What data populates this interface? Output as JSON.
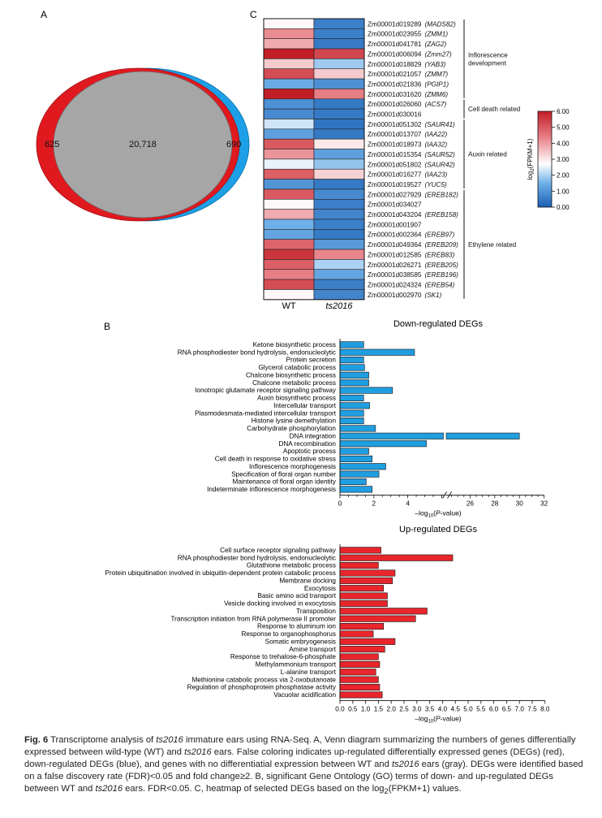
{
  "panel_labels": {
    "a": "A",
    "b": "B",
    "c": "C"
  },
  "colors": {
    "up": "#e0191f",
    "down": "#1c9fe6",
    "shared": "#a6a6a6",
    "bar_up": "#e8262c",
    "bar_down": "#1f9ee0",
    "axis": "#111111"
  },
  "chart_data": [
    {
      "type": "venn",
      "panel": "A",
      "sets": [
        {
          "name": "up-regulated DEGs",
          "count": 625,
          "label": "625"
        },
        {
          "name": "shared",
          "count": 20718,
          "label": "20,718"
        },
        {
          "name": "down-regulated DEGs",
          "count": 690,
          "label": "690"
        }
      ]
    },
    {
      "type": "heatmap",
      "panel": "C",
      "columns": [
        "WT",
        "ts2016"
      ],
      "colorbar": {
        "label": "log2(FPKM+1)",
        "ticks": [
          "0.00",
          "1.00",
          "2.00",
          "3.00",
          "4.00",
          "5.00",
          "6.00"
        ],
        "range": [
          0,
          6
        ]
      },
      "rows": [
        {
          "id": "Zm00001d019289",
          "sym": "(MADS82)",
          "v": [
            2.8,
            0.6
          ]
        },
        {
          "id": "Zm00001d023955",
          "sym": "(ZMM1)",
          "v": [
            4.2,
            0.6
          ]
        },
        {
          "id": "Zm00001d041781",
          "sym": "(ZAG2)",
          "v": [
            3.8,
            0.5
          ]
        },
        {
          "id": "Zm00001d006094",
          "sym": "(Zmm27)",
          "v": [
            6.0,
            5.3
          ]
        },
        {
          "id": "Zm00001d018829",
          "sym": "(YAB3)",
          "v": [
            3.4,
            1.9
          ]
        },
        {
          "id": "Zm00001d021057",
          "sym": "(ZMM7)",
          "v": [
            5.2,
            3.4
          ]
        },
        {
          "id": "Zm00001d021836",
          "sym": "(PGIP1)",
          "v": [
            1.4,
            0.9
          ]
        },
        {
          "id": "Zm00001d031620",
          "sym": "(ZMM6)",
          "v": [
            6.0,
            4.4
          ]
        },
        {
          "id": "Zm00001d026060",
          "sym": "(ACS7)",
          "v": [
            0.9,
            0.5
          ]
        },
        {
          "id": "Zm00001d030016",
          "sym": "",
          "v": [
            0.8,
            0.5
          ]
        },
        {
          "id": "Zm00001d051302",
          "sym": "(SAUR41)",
          "v": [
            2.3,
            0.4
          ]
        },
        {
          "id": "Zm00001d013707",
          "sym": "(IAA22)",
          "v": [
            1.2,
            0.5
          ]
        },
        {
          "id": "Zm00001d018973",
          "sym": "(IAA32)",
          "v": [
            5.0,
            3.0
          ]
        },
        {
          "id": "Zm00001d015354",
          "sym": "(SAUR52)",
          "v": [
            4.1,
            1.2
          ]
        },
        {
          "id": "Zm00001d051802",
          "sym": "(SAUR42)",
          "v": [
            2.5,
            1.8
          ]
        },
        {
          "id": "Zm00001d016277",
          "sym": "(IAA23)",
          "v": [
            4.9,
            3.3
          ]
        },
        {
          "id": "Zm00001d019527",
          "sym": "(YUC5)",
          "v": [
            1.0,
            0.5
          ]
        },
        {
          "id": "Zm00001d027929",
          "sym": "(EREB182)",
          "v": [
            5.0,
            0.8
          ]
        },
        {
          "id": "Zm00001d034027",
          "sym": "",
          "v": [
            2.8,
            0.6
          ]
        },
        {
          "id": "Zm00001d043204",
          "sym": "(EREB158)",
          "v": [
            3.8,
            0.7
          ]
        },
        {
          "id": "Zm00001d001907",
          "sym": "",
          "v": [
            1.5,
            0.6
          ]
        },
        {
          "id": "Zm00001d002364",
          "sym": "(EREB97)",
          "v": [
            1.3,
            0.5
          ]
        },
        {
          "id": "Zm00001d049364",
          "sym": "(EREB209)",
          "v": [
            4.8,
            1.1
          ]
        },
        {
          "id": "Zm00001d012585",
          "sym": "(EREB83)",
          "v": [
            5.6,
            4.3
          ]
        },
        {
          "id": "Zm00001d026271",
          "sym": "(EREB205)",
          "v": [
            4.9,
            2.0
          ]
        },
        {
          "id": "Zm00001d038585",
          "sym": "(EREB196)",
          "v": [
            4.4,
            1.3
          ]
        },
        {
          "id": "Zm00001d024324",
          "sym": "(EREB54)",
          "v": [
            5.2,
            0.6
          ]
        },
        {
          "id": "Zm00001d002970",
          "sym": "(SK1)",
          "v": [
            2.8,
            0.7
          ]
        }
      ],
      "groups": [
        {
          "label": [
            "Inflorescence",
            "development"
          ],
          "from": 0,
          "to": 7
        },
        {
          "label": [
            "Cell death related"
          ],
          "from": 8,
          "to": 9
        },
        {
          "label": [
            "Auxin related"
          ],
          "from": 10,
          "to": 16
        },
        {
          "label": [
            "Ethylene related"
          ],
          "from": 17,
          "to": 27
        }
      ]
    },
    {
      "type": "bar",
      "panel": "B-down",
      "title": "Down-regulated DEGs",
      "xlabel": "–log10(P-value)",
      "xticks_left": [
        "0",
        "2",
        "4"
      ],
      "xticks_right": [
        "26",
        "28",
        "30",
        "32"
      ],
      "broken_axis": {
        "left_range": [
          0,
          6
        ],
        "right_range": [
          25,
          32
        ]
      },
      "categories": [
        "Ketone biosynthetic process",
        "RNA phosphodiester bond hydrolysis, endonucleolytic",
        "Protein secretion",
        "Glycerol catabolic process",
        "Chalcone biosynthetic process",
        "Chalcone metabolic process",
        "Ionotropic glutamate receptor signaling pathway",
        "Auxin biosynthetic process",
        "Intercellular transport",
        "Plasmodesmata-mediated intercellular transport",
        "Histone lysine demethylation",
        "Carbohydrate phosphorylation",
        "DNA integration",
        "DNA recombination",
        "Apoptotic process",
        "Cell death in response to oxidative stress",
        "Inflorescence morphogenesis",
        "Specification of floral organ number",
        "Maintenance of floral organ identity",
        "Indeterminate inflorescence morphogenesis"
      ],
      "values": [
        1.4,
        4.4,
        1.4,
        1.45,
        1.7,
        1.7,
        3.1,
        1.4,
        1.75,
        1.4,
        1.4,
        2.1,
        30.0,
        5.1,
        1.7,
        1.9,
        2.7,
        2.3,
        1.55,
        1.9
      ]
    },
    {
      "type": "bar",
      "panel": "B-up",
      "title": "Up-regulated DEGs",
      "xlabel": "–log10(P-value)",
      "xticks": [
        "0.0",
        "0.5",
        "1.0",
        "1.5",
        "2.0",
        "2.5",
        "3.0",
        "3.5",
        "4.0",
        "4.5",
        "5.0",
        "5.5",
        "6.0",
        "6.5",
        "7.0",
        "7.5",
        "8.0"
      ],
      "xlim": [
        0,
        8
      ],
      "categories": [
        "Cell surface receptor signaling pathway",
        "RNA phosphodiester bond hydrolysis, endonucleolytic",
        "Glutathione metabolic process",
        "Protein ubiquitination involved in ubiquitin-dependent protein catabolic process",
        "Membrane docking",
        "Exocytosis",
        "Basic amino acid transport",
        "Vesicle docking involved in exocytosis",
        "Transposition",
        "Transcription initiation from RNA polymerase II promoter",
        "Response to aluminum ion",
        "Response to organophosphorus",
        "Somatic embryogenesis",
        "Amine transport",
        "Response to trehalose-6-phosphate",
        "Methylammonium transport",
        "L-alanine transport",
        "Methionine catabolic process via 2-oxobutanoate",
        "Regulation of phosphoprotein phosphatase activity",
        "Vacuolar acidification"
      ],
      "values": [
        1.6,
        4.4,
        1.5,
        2.15,
        2.05,
        1.7,
        1.85,
        1.85,
        3.4,
        2.95,
        1.7,
        1.3,
        2.15,
        1.75,
        1.5,
        1.55,
        1.4,
        1.5,
        1.55,
        1.65
      ]
    }
  ],
  "caption": {
    "fig": "Fig. 6",
    "segments": [
      {
        "t": "  Transcriptome analysis of "
      },
      {
        "t": "ts2016",
        "i": true
      },
      {
        "t": " immature ears using RNA-Seq.  A, Venn diagram summarizing the numbers of genes differentially expressed between wild-type (WT) and "
      },
      {
        "t": "ts2016",
        "i": true
      },
      {
        "t": " ears.  False coloring indicates up-regulated differentially expressed genes (DEGs) (red), down-regulated DEGs (blue), and genes with no differentiatial expression between WT and "
      },
      {
        "t": "ts2016",
        "i": true
      },
      {
        "t": " ears (gray).  DEGs were identified based on a false discovery rate (FDR)<0.05 and fold change≥2.  B, significant Gene Ontology (GO) terms of down- and up-regulated DEGs between WT and "
      },
      {
        "t": "ts2016",
        "i": true
      },
      {
        "t": " ears.  FDR<0.05.  C, heatmap of selected DEGs based on the log"
      },
      {
        "t": "2",
        "sub": true
      },
      {
        "t": "(FPKM+1) values."
      }
    ]
  }
}
